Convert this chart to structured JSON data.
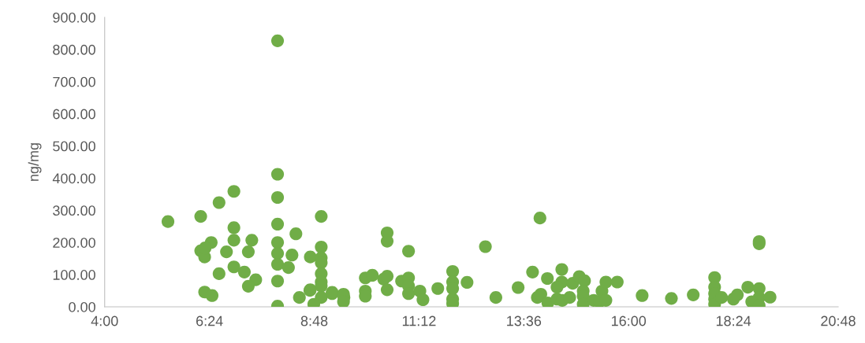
{
  "chart_data": {
    "type": "scatter",
    "ylabel": "ng/mg",
    "marker": "circle",
    "grid": false,
    "legend": false,
    "xlim": [
      4,
      20.8
    ],
    "xticks": [
      {
        "value": 4,
        "label": "4:00"
      },
      {
        "value": 6.4,
        "label": "6:24"
      },
      {
        "value": 8.8,
        "label": "8:48"
      },
      {
        "value": 11.2,
        "label": "11:12"
      },
      {
        "value": 13.6,
        "label": "13:36"
      },
      {
        "value": 16,
        "label": "16:00"
      },
      {
        "value": 18.4,
        "label": "18:24"
      },
      {
        "value": 20.8,
        "label": "20:48"
      }
    ],
    "ylim": [
      0,
      900
    ],
    "yticks": [
      {
        "value": 0,
        "label": "0.00"
      },
      {
        "value": 100,
        "label": "100.00"
      },
      {
        "value": 200,
        "label": "200.00"
      },
      {
        "value": 300,
        "label": "300.00"
      },
      {
        "value": 400,
        "label": "400.00"
      },
      {
        "value": 500,
        "label": "500.00"
      },
      {
        "value": 600,
        "label": "600.00"
      },
      {
        "value": 700,
        "label": "700.00"
      },
      {
        "value": 800,
        "label": "800.00"
      },
      {
        "value": 900,
        "label": "900.00"
      }
    ],
    "series": [
      {
        "color": "#70ad47",
        "x": [
          5.45,
          6.2,
          6.62,
          6.96,
          7.96,
          7.96,
          7.96,
          7.96,
          7.96,
          7.96,
          7.96,
          7.96,
          7.96,
          6.96,
          6.96,
          7.37,
          6.79,
          7.29,
          6.44,
          6.2,
          6.29,
          6.3,
          6.96,
          6.62,
          7.2,
          7.46,
          7.29,
          6.29,
          6.46,
          8.38,
          8.29,
          8.21,
          8.71,
          8.96,
          8.96,
          8.96,
          8.96,
          8.96,
          8.96,
          8.96,
          8.96,
          8.71,
          8.46,
          8.79,
          9.21,
          9.48,
          8.7,
          9.21,
          9.47,
          9.47,
          9.97,
          10.13,
          9.97,
          9.97,
          10.47,
          10.47,
          10.39,
          10.47,
          10.47,
          10.96,
          10.8,
          10.96,
          10.96,
          10.96,
          11.22,
          11.29,
          11.63,
          11.97,
          11.97,
          11.97,
          11.97,
          11.97,
          12.3,
          12.72,
          12.96,
          13.47,
          13.97,
          13.8,
          14.14,
          14.47,
          14.47,
          14.36,
          14.72,
          14.87,
          14.99,
          13.91,
          13.99,
          14.15,
          14.36,
          14.48,
          14.65,
          14.96,
          14.96,
          14.96,
          15.2,
          15.33,
          15.39,
          15.48,
          15.48,
          15.74,
          16.31,
          16.98,
          17.48,
          17.97,
          17.97,
          17.97,
          17.97,
          17.97,
          18.13,
          18.4,
          18.49,
          18.73,
          18.99,
          18.99,
          18.99,
          18.99,
          18.82,
          18.99,
          19.24
        ],
        "values": [
          265,
          281,
          324,
          359,
          827,
          412,
          340,
          257,
          200,
          166,
          132,
          80,
          2,
          246,
          207,
          207,
          171,
          171,
          200,
          174,
          155,
          183,
          124,
          103,
          108,
          84,
          64,
          46,
          35,
          227,
          161,
          122,
          155,
          281,
          186,
          152,
          137,
          103,
          77,
          65,
          29,
          53,
          29,
          8,
          41,
          29,
          51,
          45,
          39,
          16,
          90,
          98,
          49,
          33,
          230,
          204,
          86,
          95,
          53,
          173,
          80,
          90,
          65,
          41,
          49,
          22,
          57,
          110,
          77,
          57,
          24,
          10,
          76,
          187,
          29,
          60,
          276,
          108,
          88,
          116,
          77,
          61,
          73,
          94,
          81,
          29,
          39,
          12,
          24,
          20,
          29,
          49,
          33,
          8,
          20,
          16,
          49,
          77,
          20,
          77,
          35,
          26,
          37,
          91,
          61,
          41,
          24,
          8,
          29,
          24,
          37,
          61,
          196,
          203,
          57,
          29,
          16,
          4,
          30
        ]
      }
    ]
  }
}
